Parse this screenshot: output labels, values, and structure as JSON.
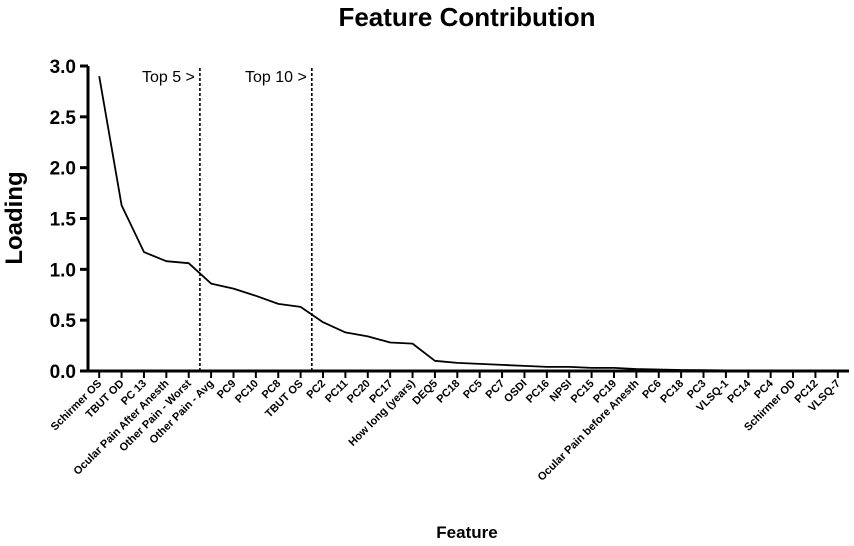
{
  "chart_data": {
    "type": "line",
    "title": "Feature Contribution",
    "xlabel": "Feature",
    "ylabel": "Loading",
    "ylim": [
      0,
      3.0
    ],
    "yticks": [
      "0.0",
      "0.5",
      "1.0",
      "1.5",
      "2.0",
      "2.5",
      "3.0"
    ],
    "categories": [
      "Schirmer OS",
      "TBUT OD",
      "PC 13",
      "Ocular Pain After Anesth",
      "Other Pain - Worst",
      "Other Pain - Avg",
      "PC9",
      "PC10",
      "PC8",
      "TBUT OS",
      "PC2",
      "PC11",
      "PC20",
      "PC17",
      "How long (years)",
      "DEQ5",
      "PC18",
      "PC5",
      "PC7",
      "OSDI",
      "PC16",
      "NPSI",
      "PC15",
      "PC19",
      "Ocular Pain before Anesth",
      "PC6",
      "PC18",
      "PC3",
      "VLSQ-1",
      "PC14",
      "PC4",
      "Schirmer OD",
      "PC12",
      "VLSQ-7"
    ],
    "series": [
      {
        "values": [
          2.9,
          1.63,
          1.17,
          1.08,
          1.06,
          0.86,
          0.81,
          0.74,
          0.66,
          0.63,
          0.48,
          0.38,
          0.34,
          0.28,
          0.27,
          0.1,
          0.08,
          0.07,
          0.06,
          0.05,
          0.04,
          0.04,
          0.03,
          0.03,
          0.02,
          0.015,
          0.01,
          0.008,
          0.006,
          0.005,
          0.004,
          0.003,
          0.002,
          0.001
        ],
        "color": "#000000"
      }
    ],
    "annotations": [
      {
        "text": "Top 5 >",
        "after_index": 4
      },
      {
        "text": "Top 10 >",
        "after_index": 9
      }
    ],
    "grid": false,
    "legend": "none"
  }
}
